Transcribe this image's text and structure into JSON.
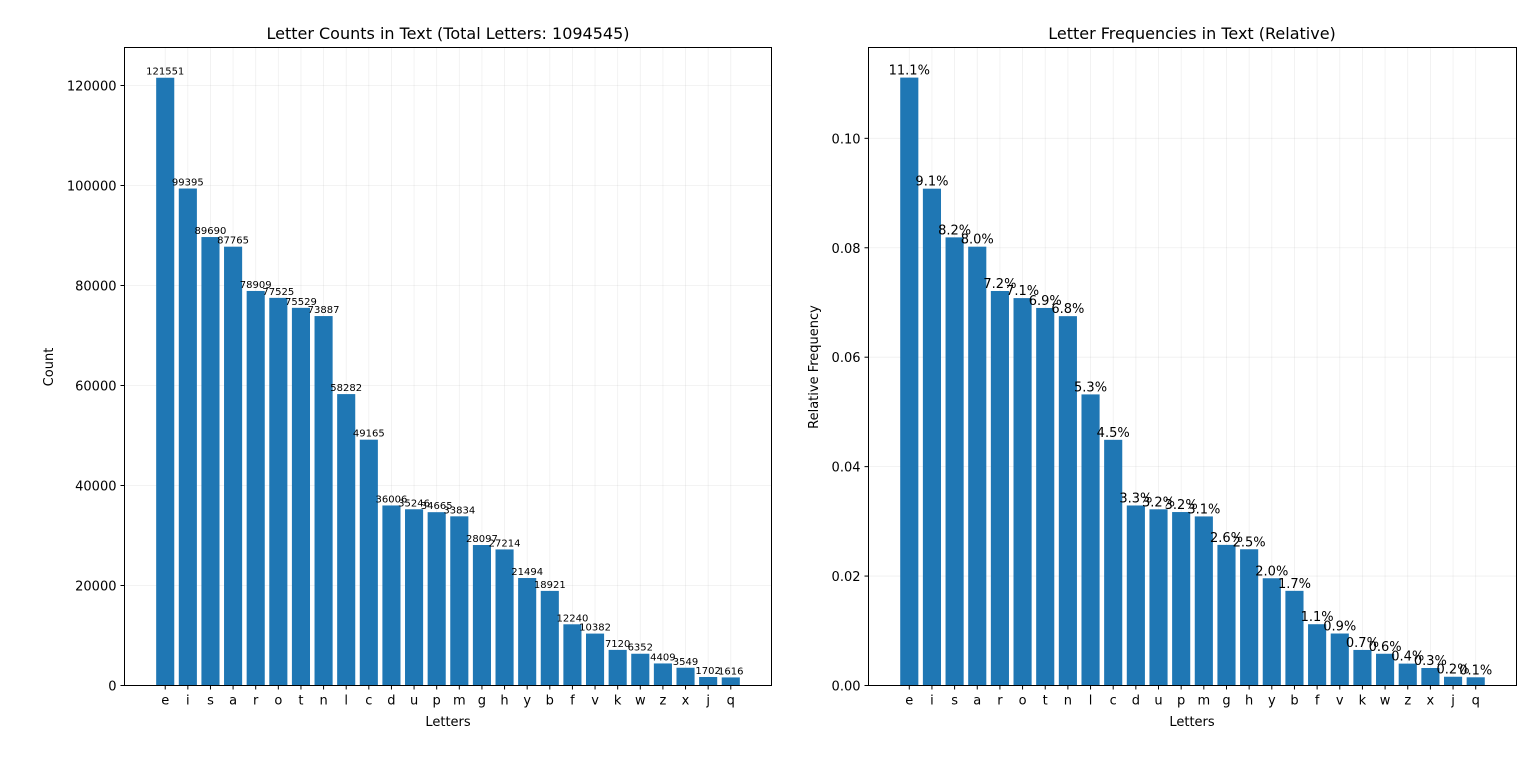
{
  "chart_data": [
    {
      "type": "bar",
      "title": "Letter Counts in Text (Total Letters: 1094545)",
      "xlabel": "Letters",
      "ylabel": "Count",
      "categories": [
        "e",
        "i",
        "s",
        "a",
        "r",
        "o",
        "t",
        "n",
        "l",
        "c",
        "d",
        "u",
        "p",
        "m",
        "g",
        "h",
        "y",
        "b",
        "f",
        "v",
        "k",
        "w",
        "z",
        "x",
        "j",
        "q"
      ],
      "values": [
        121551,
        99395,
        89690,
        87765,
        78909,
        77525,
        75529,
        73887,
        58282,
        49165,
        36006,
        35246,
        34665,
        33834,
        28097,
        27214,
        21494,
        18921,
        12240,
        10382,
        7120,
        6352,
        4409,
        3549,
        1702,
        1616
      ],
      "data_labels": [
        "121551",
        "99395",
        "89690",
        "87765",
        "78909",
        "77525",
        "75529",
        "73887",
        "58282",
        "49165",
        "36006",
        "35246",
        "34665",
        "33834",
        "28097",
        "27214",
        "21494",
        "18921",
        "12240",
        "10382",
        "7120",
        "6352",
        "4409",
        "3549",
        "1702",
        "1616"
      ],
      "yticks": [
        0,
        20000,
        40000,
        60000,
        80000,
        100000,
        120000
      ],
      "ytick_labels": [
        "0",
        "20000",
        "40000",
        "60000",
        "80000",
        "100000",
        "120000"
      ],
      "ylim": [
        0,
        127600
      ],
      "grid": true,
      "bar_color": "#1f77b4"
    },
    {
      "type": "bar",
      "title": "Letter Frequencies in Text (Relative)",
      "xlabel": "Letters",
      "ylabel": "Relative Frequency",
      "categories": [
        "e",
        "i",
        "s",
        "a",
        "r",
        "o",
        "t",
        "n",
        "l",
        "c",
        "d",
        "u",
        "p",
        "m",
        "g",
        "h",
        "y",
        "b",
        "f",
        "v",
        "k",
        "w",
        "z",
        "x",
        "j",
        "q"
      ],
      "values": [
        0.1111,
        0.0908,
        0.0819,
        0.0802,
        0.0721,
        0.0708,
        0.069,
        0.0675,
        0.0532,
        0.0449,
        0.0329,
        0.0322,
        0.0317,
        0.0309,
        0.0257,
        0.0249,
        0.0196,
        0.0173,
        0.0112,
        0.0095,
        0.0065,
        0.0058,
        0.004,
        0.0032,
        0.0016,
        0.0015
      ],
      "data_labels": [
        "11.1%",
        "9.1%",
        "8.2%",
        "8.0%",
        "7.2%",
        "7.1%",
        "6.9%",
        "6.8%",
        "5.3%",
        "4.5%",
        "3.3%",
        "3.2%",
        "3.2%",
        "3.1%",
        "2.6%",
        "2.5%",
        "2.0%",
        "1.7%",
        "1.1%",
        "0.9%",
        "0.7%",
        "0.6%",
        "0.4%",
        "0.3%",
        "0.2%",
        "0.1%"
      ],
      "yticks": [
        0,
        0.02,
        0.04,
        0.06,
        0.08,
        0.1
      ],
      "ytick_labels": [
        "0.00",
        "0.02",
        "0.04",
        "0.06",
        "0.08",
        "0.10"
      ],
      "ylim": [
        0,
        0.1166
      ],
      "grid": true,
      "bar_color": "#1f77b4"
    }
  ]
}
